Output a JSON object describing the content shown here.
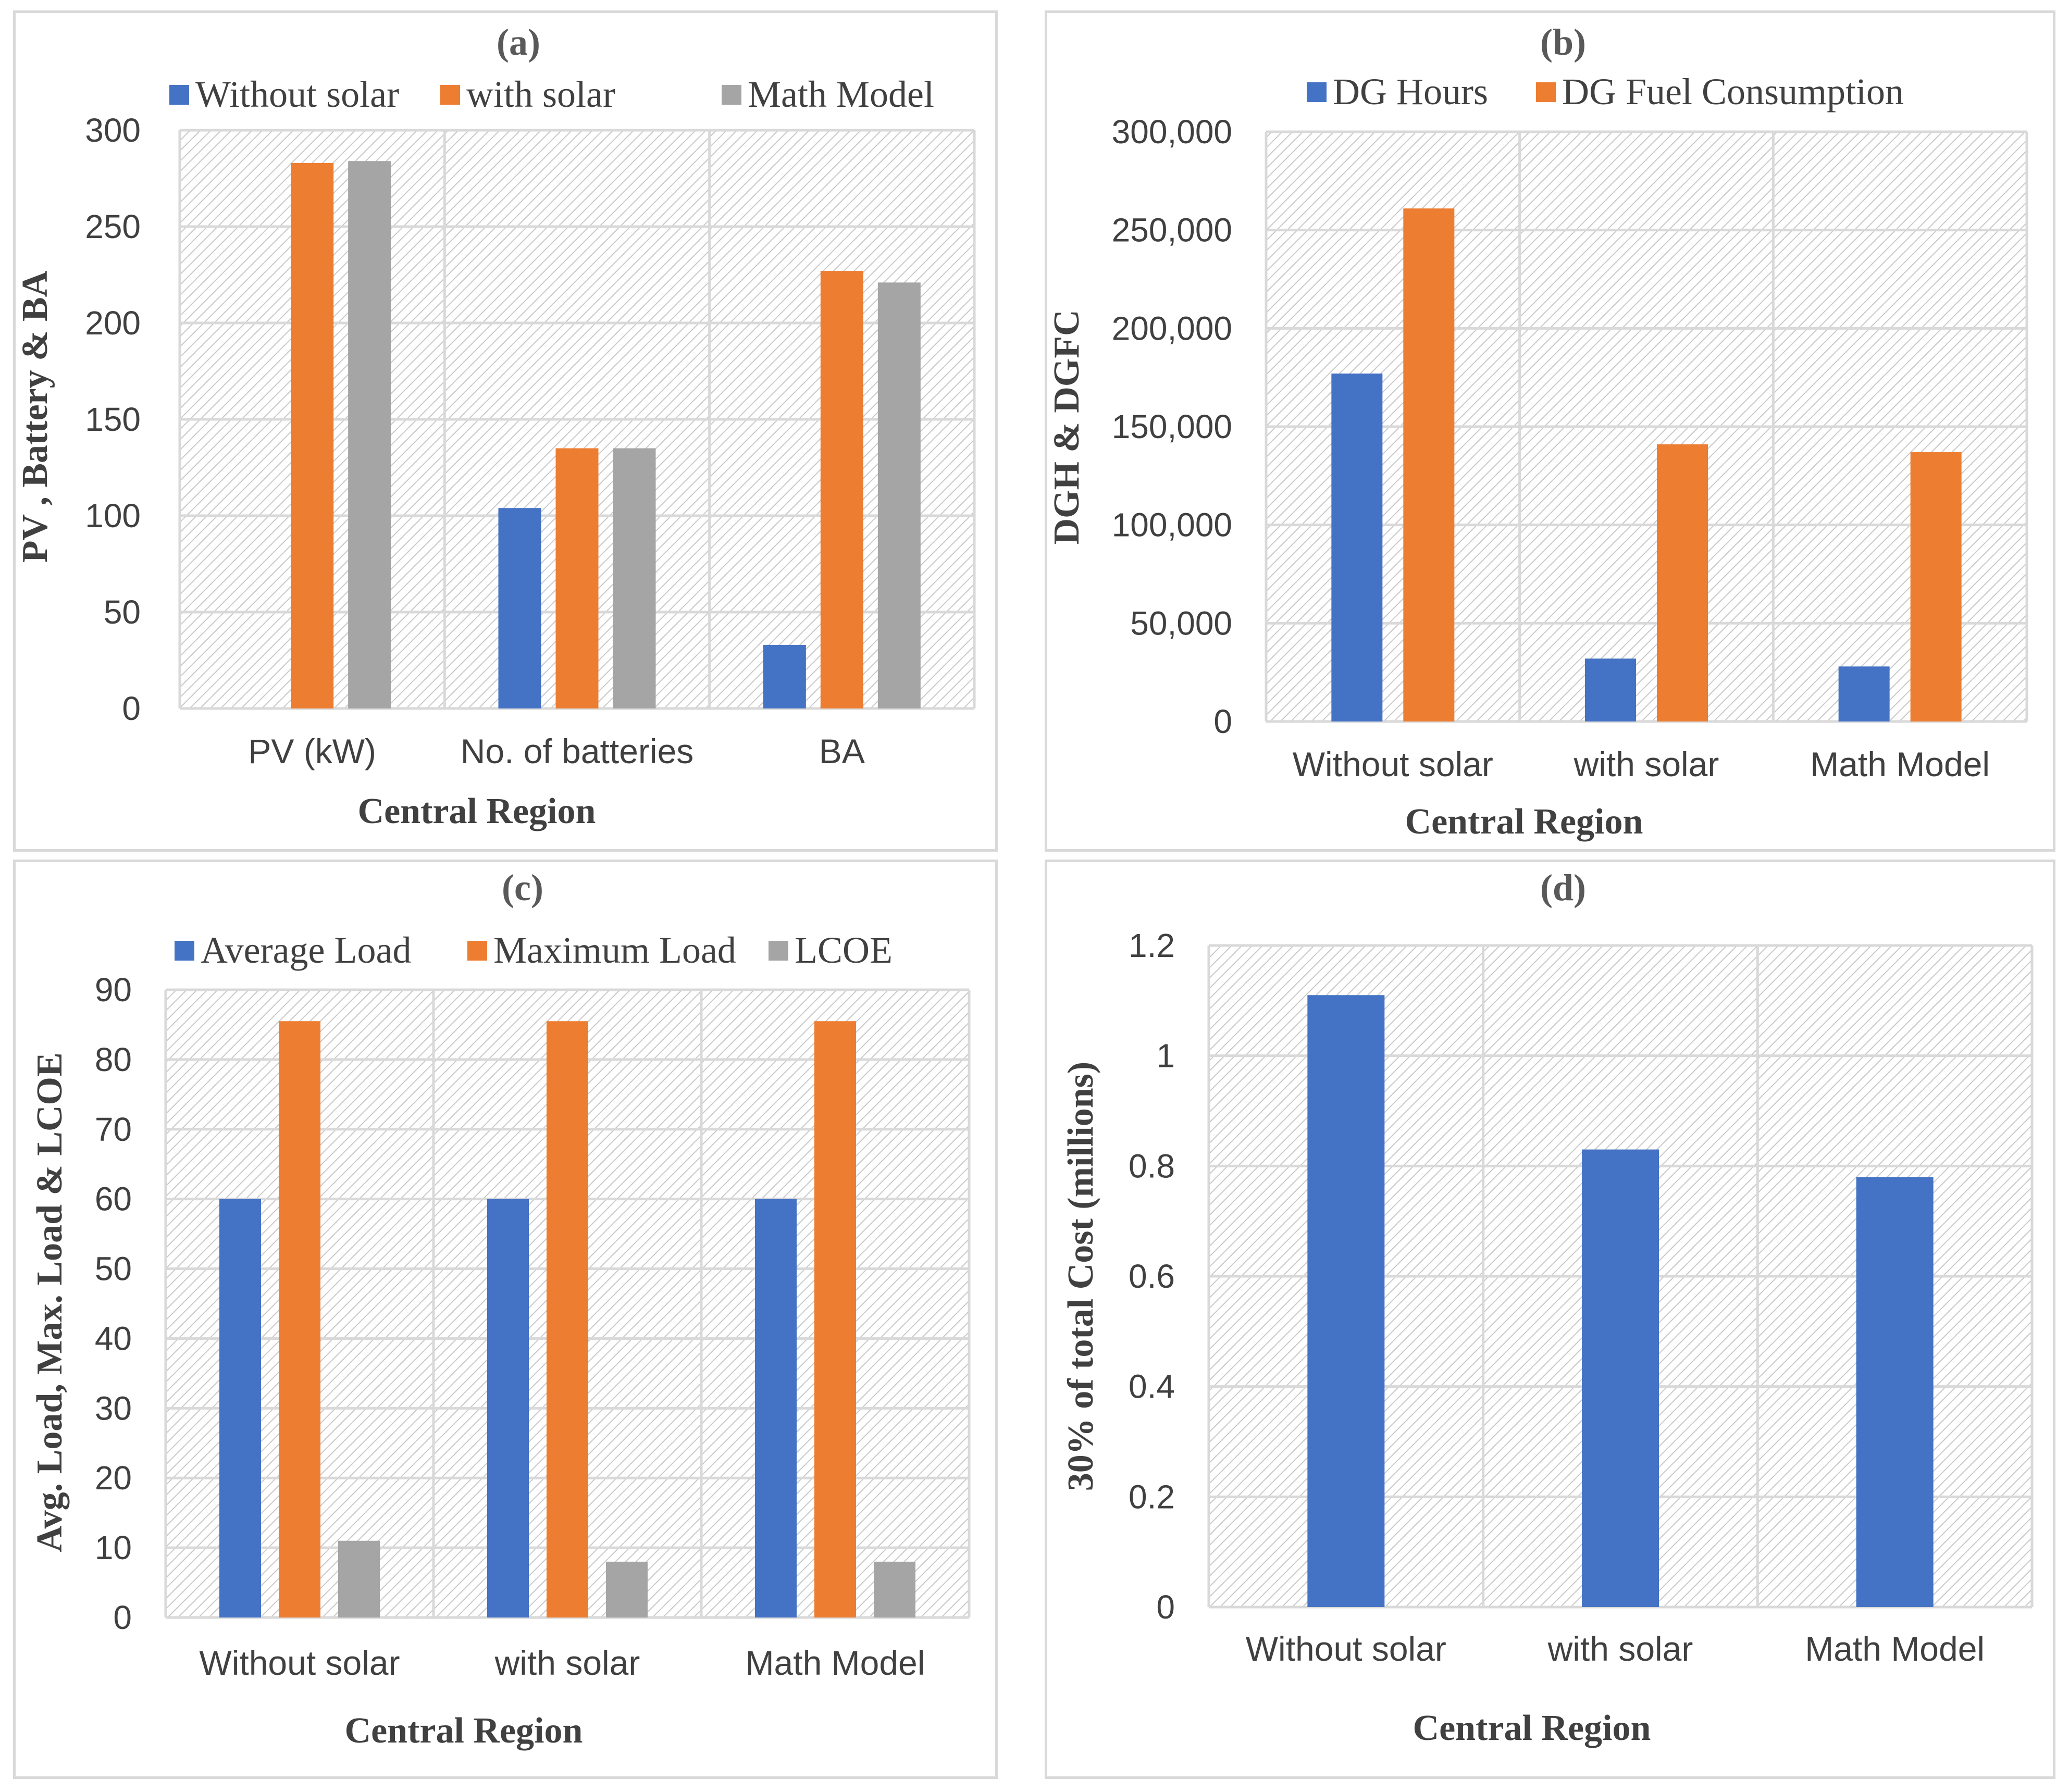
{
  "figure": {
    "x_title": "Central Region"
  },
  "colors": {
    "blue": "#4472C4",
    "orange": "#ED7D31",
    "gray": "#A5A5A5",
    "grid": "#d9d9d9",
    "hatch": "#c9c9c9",
    "text": "#404040"
  },
  "chart_data": [
    {
      "id": "a",
      "type": "bar",
      "title": "(a)",
      "xlabel": "Central Region",
      "ylabel": "PV , Battery & BA",
      "categories": [
        "PV (kW)",
        "No. of batteries",
        "BA"
      ],
      "ylim": [
        0,
        300
      ],
      "yticks": [
        0,
        50,
        100,
        150,
        200,
        250,
        300
      ],
      "ytick_labels": [
        "0",
        "50",
        "100",
        "150",
        "200",
        "250",
        "300"
      ],
      "legend_position": "top",
      "grid": true,
      "series": [
        {
          "name": "Without solar",
          "color": "#4472C4",
          "values": [
            0,
            104,
            33
          ]
        },
        {
          "name": "with solar",
          "color": "#ED7D31",
          "values": [
            283,
            135,
            227
          ]
        },
        {
          "name": "Math Model",
          "color": "#A5A5A5",
          "values": [
            284,
            135,
            221
          ]
        }
      ]
    },
    {
      "id": "b",
      "type": "bar",
      "title": "(b)",
      "xlabel": "Central Region",
      "ylabel": "DGH & DGFC",
      "categories": [
        "Without solar",
        "with solar",
        "Math Model"
      ],
      "ylim": [
        0,
        300000
      ],
      "yticks": [
        0,
        50000,
        100000,
        150000,
        200000,
        250000,
        300000
      ],
      "ytick_labels": [
        "0",
        "50,000",
        "100,000",
        "150,000",
        "200,000",
        "250,000",
        "300,000"
      ],
      "legend_position": "top",
      "grid": true,
      "series": [
        {
          "name": "DG Hours",
          "color": "#4472C4",
          "values": [
            177000,
            32000,
            28000
          ]
        },
        {
          "name": "DG Fuel Consumption",
          "color": "#ED7D31",
          "values": [
            261000,
            141000,
            137000
          ]
        }
      ]
    },
    {
      "id": "c",
      "type": "bar",
      "title": "(c)",
      "xlabel": "Central Region",
      "ylabel": "Avg. Load, Max. Load & LCOE",
      "categories": [
        "Without solar",
        "with solar",
        "Math Model"
      ],
      "ylim": [
        0,
        90
      ],
      "yticks": [
        0,
        10,
        20,
        30,
        40,
        50,
        60,
        70,
        80,
        90
      ],
      "ytick_labels": [
        "0",
        "10",
        "20",
        "30",
        "40",
        "50",
        "60",
        "70",
        "80",
        "90"
      ],
      "legend_position": "top",
      "grid": true,
      "series": [
        {
          "name": "Average Load",
          "color": "#4472C4",
          "values": [
            60,
            60,
            60
          ]
        },
        {
          "name": "Maximum Load",
          "color": "#ED7D31",
          "values": [
            85.5,
            85.5,
            85.5
          ]
        },
        {
          "name": "LCOE",
          "color": "#A5A5A5",
          "values": [
            11,
            8,
            8
          ]
        }
      ]
    },
    {
      "id": "d",
      "type": "bar",
      "title": "(d)",
      "xlabel": "Central Region",
      "ylabel": "30% of total Cost (millions)",
      "categories": [
        "Without solar",
        "with solar",
        "Math Model"
      ],
      "ylim": [
        0,
        1.2
      ],
      "yticks": [
        0,
        0.2,
        0.4,
        0.6,
        0.8,
        1.0,
        1.2
      ],
      "ytick_labels": [
        "0",
        "0.2",
        "0.4",
        "0.6",
        "0.8",
        "1",
        "1.2"
      ],
      "legend_position": "none",
      "grid": true,
      "series": [
        {
          "name": "30% of total Cost",
          "color": "#4472C4",
          "values": [
            1.11,
            0.83,
            0.78
          ]
        }
      ]
    }
  ]
}
